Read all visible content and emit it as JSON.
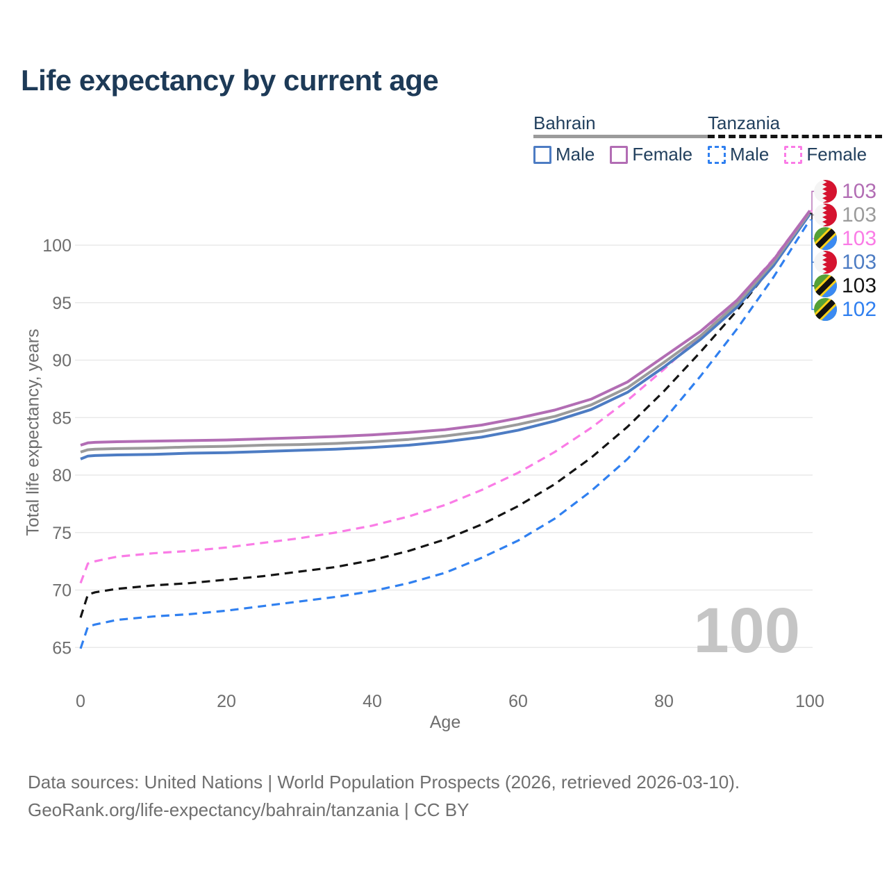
{
  "title": "Life expectancy by current age",
  "legend": {
    "groups": [
      {
        "country": "Bahrain",
        "line_style": "solid",
        "underline_color": "#9b9b9b",
        "items": [
          {
            "label": "Male",
            "color": "#4d7cc3"
          },
          {
            "label": "Female",
            "color": "#b26db4"
          }
        ]
      },
      {
        "country": "Tanzania",
        "line_style": "dashed",
        "underline_color": "#141414",
        "items": [
          {
            "label": "Male",
            "color": "#3080f0"
          },
          {
            "label": "Female",
            "color": "#fa7ce6"
          }
        ]
      }
    ]
  },
  "watermark": "100",
  "flag_colors": {
    "bahrain_red": "#d5132f",
    "bahrain_white": "#f4f4f4",
    "tz_green": "#54a037",
    "tz_blue": "#3b8af2",
    "tz_yellow": "#fbd116",
    "tz_black": "#111111"
  },
  "end_labels": [
    {
      "series": "bahrain-female",
      "flag": "bahrain",
      "value": "103"
    },
    {
      "series": "bahrain-all",
      "flag": "bahrain",
      "value": "103"
    },
    {
      "series": "tanzania-female",
      "flag": "tanzania",
      "value": "103"
    },
    {
      "series": "bahrain-male",
      "flag": "bahrain",
      "value": "103"
    },
    {
      "series": "tanzania-all",
      "flag": "tanzania",
      "value": "103"
    },
    {
      "series": "tanzania-male",
      "flag": "tanzania",
      "value": "102"
    }
  ],
  "chart_data": {
    "type": "line",
    "title": "Life expectancy by current age",
    "xlabel": "Age",
    "ylabel": "Total life expectancy, years",
    "xlim": [
      0,
      100
    ],
    "ylim": [
      63,
      104
    ],
    "x_ticks": [
      0,
      20,
      40,
      60,
      80,
      100
    ],
    "y_ticks": [
      65,
      70,
      75,
      80,
      85,
      90,
      95,
      100
    ],
    "grid": "horizontal",
    "legend_position": "top-right",
    "ages": [
      0,
      1,
      2,
      5,
      10,
      15,
      20,
      25,
      30,
      35,
      40,
      45,
      50,
      55,
      60,
      65,
      70,
      75,
      80,
      85,
      90,
      95,
      100
    ],
    "series": [
      {
        "id": "bahrain-male",
        "country": "Bahrain",
        "group": "Male",
        "color": "#4d7cc3",
        "dash": false,
        "values": [
          81.4,
          81.65,
          81.7,
          81.75,
          81.8,
          81.9,
          81.95,
          82.05,
          82.15,
          82.25,
          82.4,
          82.6,
          82.9,
          83.3,
          83.9,
          84.7,
          85.7,
          87.2,
          89.4,
          91.8,
          94.6,
          98.2,
          102.7
        ]
      },
      {
        "id": "bahrain-all",
        "country": "Bahrain",
        "group": "All",
        "color": "#9b9b9b",
        "dash": false,
        "values": [
          82.0,
          82.2,
          82.25,
          82.3,
          82.35,
          82.45,
          82.5,
          82.6,
          82.65,
          82.75,
          82.9,
          83.1,
          83.4,
          83.8,
          84.4,
          85.1,
          86.1,
          87.6,
          89.8,
          92.1,
          94.9,
          98.5,
          102.85
        ]
      },
      {
        "id": "bahrain-female",
        "country": "Bahrain",
        "group": "Female",
        "color": "#b26db4",
        "dash": false,
        "values": [
          82.6,
          82.8,
          82.85,
          82.9,
          82.95,
          83.0,
          83.05,
          83.15,
          83.25,
          83.35,
          83.5,
          83.7,
          83.95,
          84.35,
          84.95,
          85.65,
          86.6,
          88.1,
          90.3,
          92.5,
          95.2,
          98.7,
          103.0
        ]
      },
      {
        "id": "tanzania-male",
        "country": "Tanzania",
        "group": "Male",
        "color": "#3080f0",
        "dash": true,
        "values": [
          64.9,
          66.8,
          67.0,
          67.4,
          67.7,
          67.9,
          68.2,
          68.6,
          69.0,
          69.4,
          69.9,
          70.6,
          71.5,
          72.8,
          74.3,
          76.2,
          78.6,
          81.4,
          84.8,
          88.6,
          92.7,
          97.2,
          102.2
        ]
      },
      {
        "id": "tanzania-all",
        "country": "Tanzania",
        "group": "All",
        "color": "#141414",
        "dash": true,
        "values": [
          67.6,
          69.6,
          69.8,
          70.1,
          70.4,
          70.6,
          70.9,
          71.2,
          71.6,
          72.0,
          72.6,
          73.4,
          74.4,
          75.7,
          77.3,
          79.2,
          81.5,
          84.2,
          87.3,
          90.7,
          94.3,
          98.3,
          102.75
        ]
      },
      {
        "id": "tanzania-female",
        "country": "Tanzania",
        "group": "Female",
        "color": "#fa7ce6",
        "dash": true,
        "values": [
          70.6,
          72.3,
          72.5,
          72.9,
          73.2,
          73.4,
          73.7,
          74.1,
          74.5,
          75.0,
          75.6,
          76.4,
          77.4,
          78.7,
          80.2,
          82.0,
          84.1,
          86.5,
          89.2,
          92.1,
          95.2,
          98.8,
          103.0
        ]
      }
    ]
  },
  "footer": {
    "line1": "Data sources: United Nations | World Population Prospects (2026, retrieved 2026-03-10).",
    "line2": "GeoRank.org/life-expectancy/bahrain/tanzania | CC BY"
  }
}
